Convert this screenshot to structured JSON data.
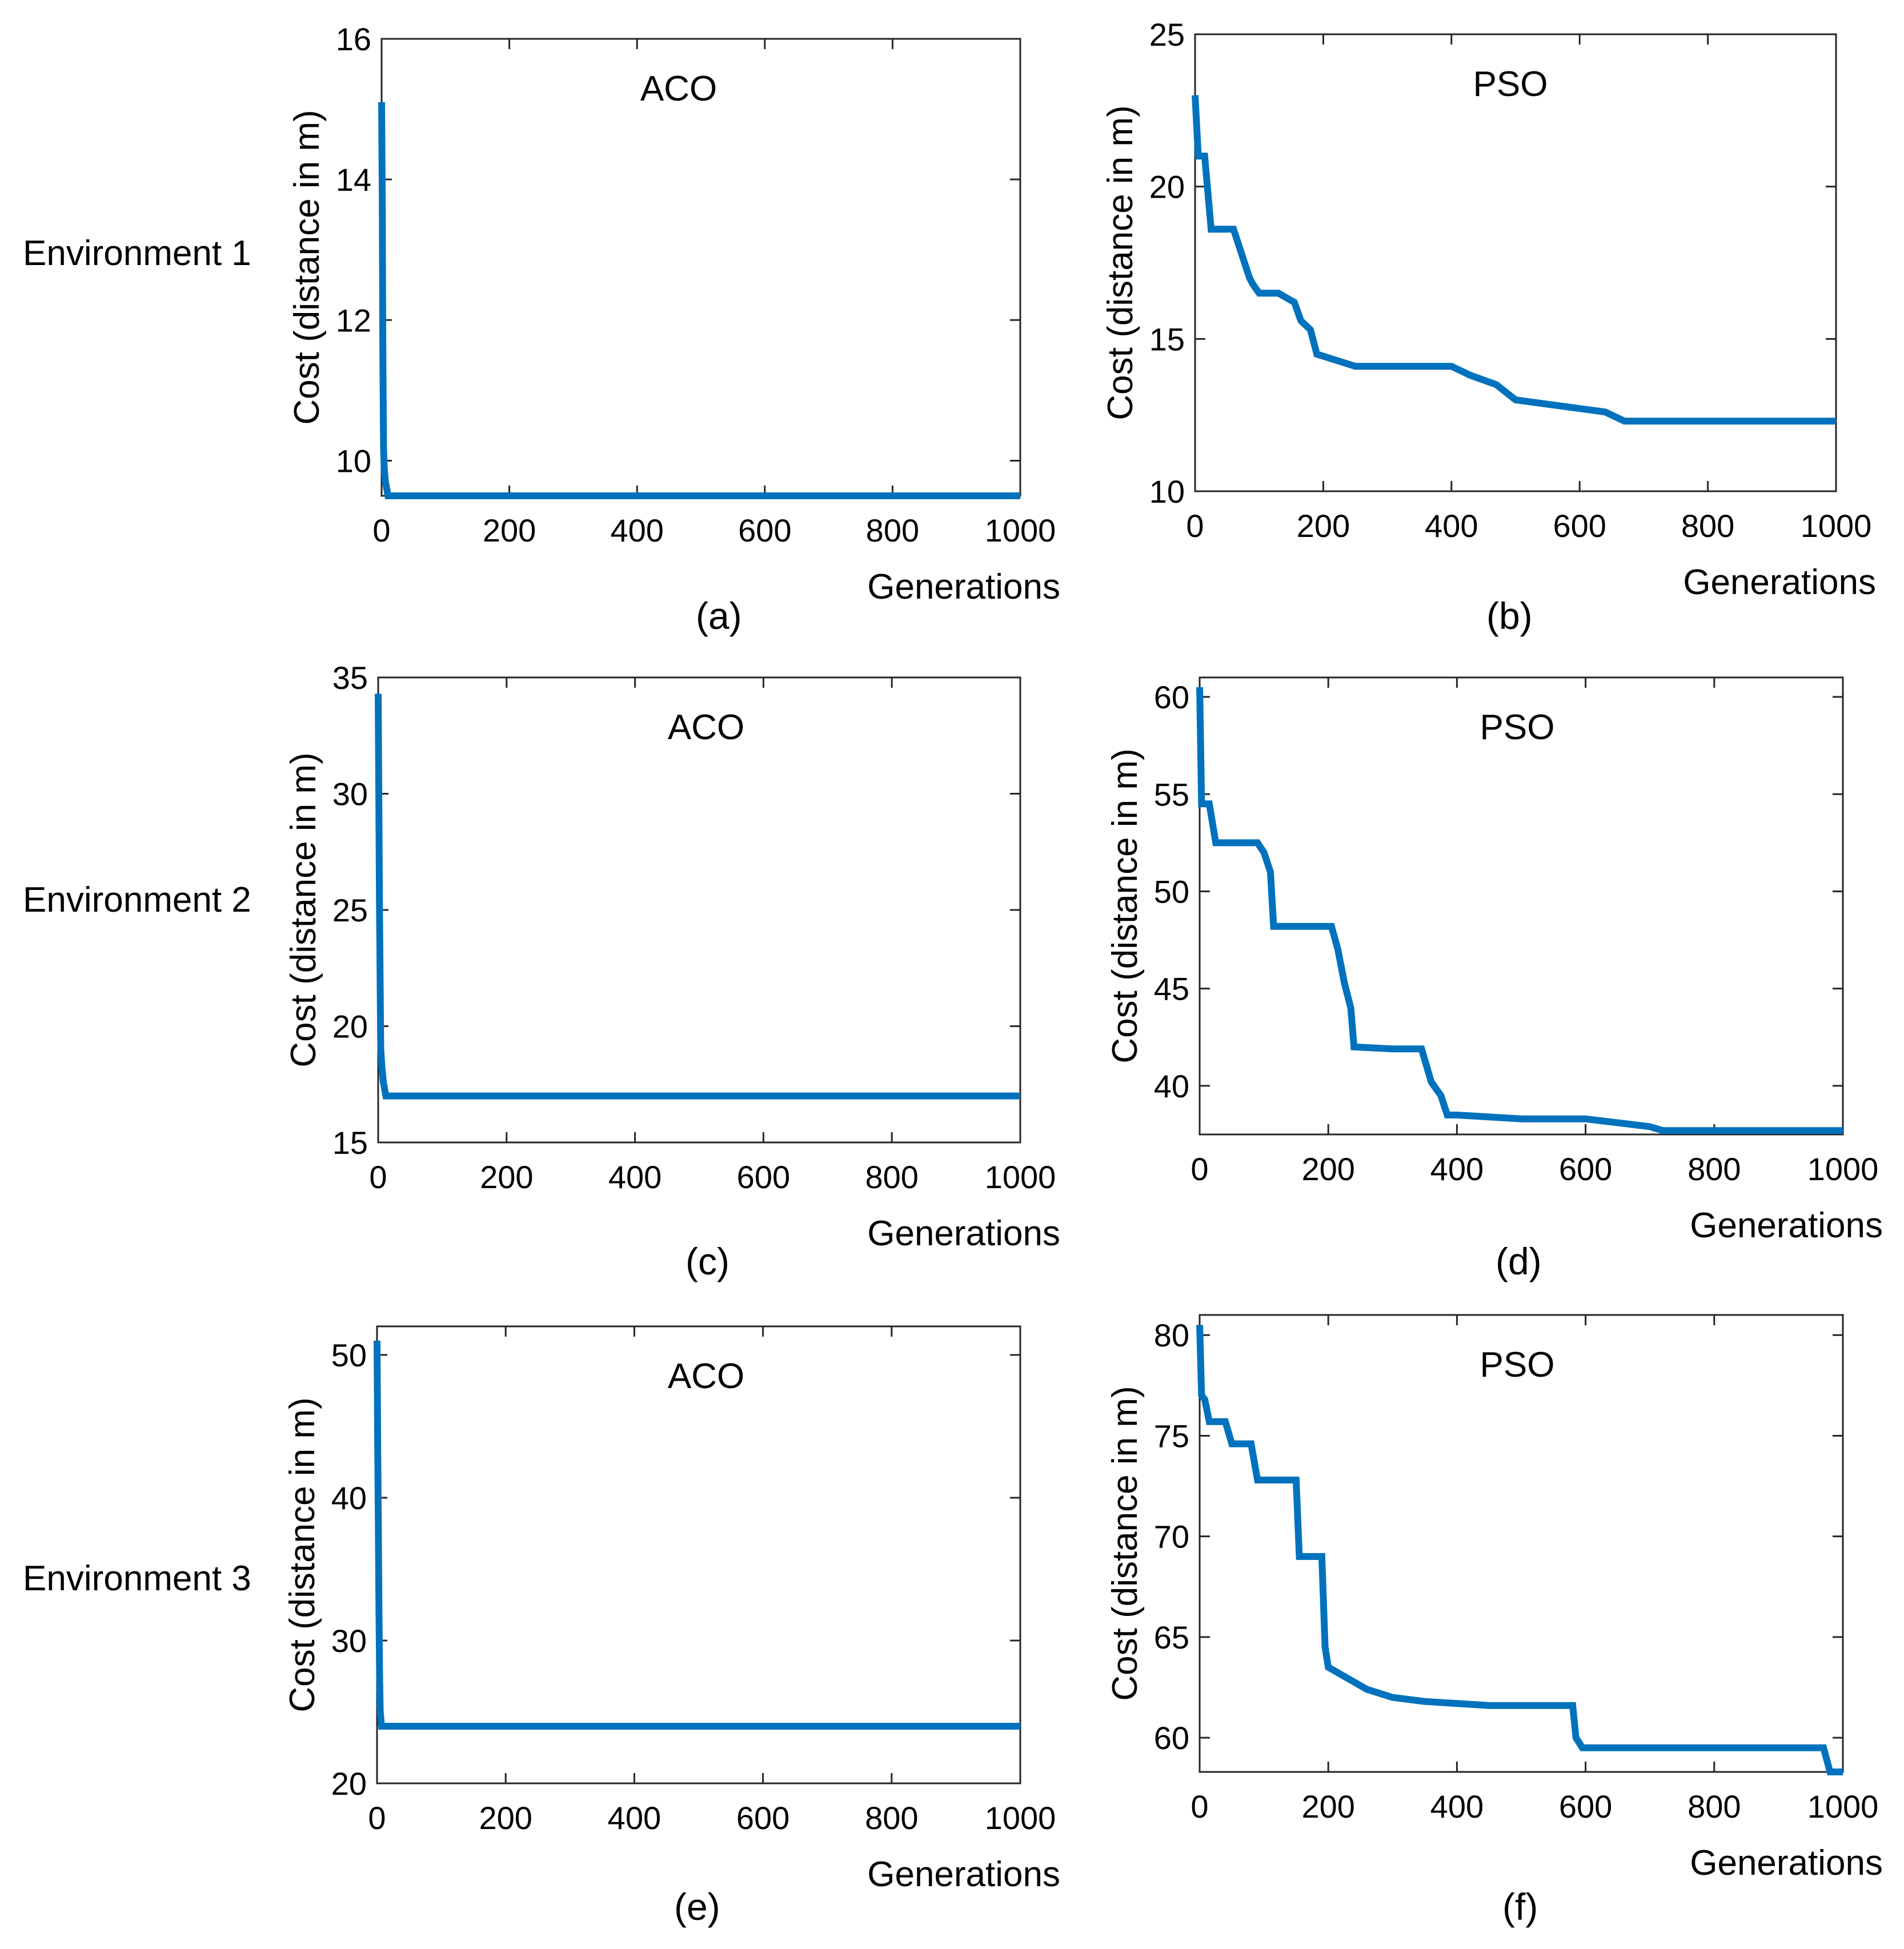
{
  "figure": {
    "row_labels": [
      "Environment 1",
      "Environment 2",
      "Environment 3"
    ],
    "panel_labels": [
      "(a)",
      "(b)",
      "(c)",
      "(d)",
      "(e)",
      "(f)"
    ]
  },
  "colors": {
    "line": "#0072BD",
    "axis": "#262626",
    "background": "#ffffff"
  },
  "chart_data": [
    {
      "id": "a",
      "type": "line",
      "title": "ACO",
      "xlabel": "Generations",
      "ylabel": "Cost (distance in m)",
      "xlim": [
        0,
        1000
      ],
      "ylim": [
        9.5,
        16
      ],
      "xticks": [
        0,
        200,
        400,
        600,
        800,
        1000
      ],
      "yticks": [
        10,
        12,
        14,
        16
      ],
      "series": [
        {
          "name": "ACO",
          "x": [
            0,
            1,
            2,
            3,
            4,
            6,
            10,
            1000
          ],
          "y": [
            15.1,
            13.8,
            11.5,
            10.2,
            9.9,
            9.7,
            9.5,
            9.5
          ]
        }
      ]
    },
    {
      "id": "b",
      "type": "line",
      "title": "PSO",
      "xlabel": "Generations",
      "ylabel": "Cost (distance in m)",
      "xlim": [
        0,
        1000
      ],
      "ylim": [
        10,
        25
      ],
      "xticks": [
        0,
        200,
        400,
        600,
        800,
        1000
      ],
      "yticks": [
        10,
        15,
        20,
        25
      ],
      "series": [
        {
          "name": "PSO",
          "x": [
            0,
            5,
            15,
            25,
            60,
            85,
            90,
            100,
            130,
            155,
            165,
            180,
            190,
            250,
            300,
            400,
            430,
            470,
            500,
            640,
            670,
            1000
          ],
          "y": [
            23.0,
            21.0,
            21.0,
            18.6,
            18.6,
            17.0,
            16.8,
            16.5,
            16.5,
            16.2,
            15.6,
            15.3,
            14.5,
            14.1,
            14.1,
            14.1,
            13.8,
            13.5,
            13.0,
            12.6,
            12.3,
            12.3
          ]
        }
      ]
    },
    {
      "id": "c",
      "type": "line",
      "title": "ACO",
      "xlabel": "Generations",
      "ylabel": "Cost (distance in m)",
      "xlim": [
        0,
        1000
      ],
      "ylim": [
        15,
        35
      ],
      "xticks": [
        0,
        200,
        400,
        600,
        800,
        1000
      ],
      "yticks": [
        15,
        20,
        25,
        30,
        35
      ],
      "series": [
        {
          "name": "ACO",
          "x": [
            0,
            1,
            2,
            3,
            4,
            6,
            8,
            12,
            1000
          ],
          "y": [
            34.3,
            30.0,
            25.5,
            22.0,
            19.0,
            18.2,
            17.6,
            17.0,
            17.0
          ]
        }
      ]
    },
    {
      "id": "d",
      "type": "line",
      "title": "PSO",
      "xlabel": "Generations",
      "ylabel": "Cost (distance in m)",
      "xlim": [
        0,
        1000
      ],
      "ylim": [
        37.5,
        61
      ],
      "xticks": [
        0,
        200,
        400,
        600,
        800,
        1000
      ],
      "yticks": [
        40,
        45,
        50,
        55,
        60
      ],
      "series": [
        {
          "name": "PSO",
          "x": [
            0,
            3,
            15,
            25,
            90,
            100,
            110,
            115,
            170,
            205,
            215,
            225,
            235,
            240,
            300,
            345,
            360,
            375,
            385,
            400,
            500,
            600,
            650,
            700,
            720,
            1000
          ],
          "y": [
            60.5,
            54.5,
            54.5,
            52.5,
            52.5,
            52.0,
            51.0,
            48.2,
            48.2,
            48.2,
            47.0,
            45.3,
            44.0,
            42.0,
            41.9,
            41.9,
            40.2,
            39.5,
            38.5,
            38.5,
            38.3,
            38.3,
            38.1,
            37.9,
            37.7,
            37.7
          ]
        }
      ]
    },
    {
      "id": "e",
      "type": "line",
      "title": "ACO",
      "xlabel": "Generations",
      "ylabel": "Cost (distance in m)",
      "xlim": [
        0,
        1000
      ],
      "ylim": [
        20,
        52
      ],
      "xticks": [
        0,
        200,
        400,
        600,
        800,
        1000
      ],
      "yticks": [
        20,
        30,
        40,
        50
      ],
      "series": [
        {
          "name": "ACO",
          "x": [
            0,
            1,
            2,
            3,
            4,
            5,
            7,
            1000
          ],
          "y": [
            51.0,
            44.0,
            38.0,
            32.0,
            27.5,
            25.0,
            24.0,
            24.0
          ]
        }
      ]
    },
    {
      "id": "f",
      "type": "line",
      "title": "PSO",
      "xlabel": "Generations",
      "ylabel": "Cost (distance in m)",
      "xlim": [
        0,
        1000
      ],
      "ylim": [
        58.3,
        81
      ],
      "xticks": [
        0,
        200,
        400,
        600,
        800,
        1000
      ],
      "yticks": [
        60,
        65,
        70,
        75,
        80
      ],
      "series": [
        {
          "name": "PSO",
          "x": [
            0,
            3,
            8,
            15,
            40,
            50,
            80,
            90,
            150,
            155,
            190,
            195,
            200,
            260,
            300,
            350,
            450,
            500,
            580,
            585,
            595,
            970,
            980,
            1000
          ],
          "y": [
            80.5,
            77.0,
            76.8,
            75.7,
            75.7,
            74.6,
            74.6,
            72.8,
            72.8,
            69.0,
            69.0,
            64.5,
            63.5,
            62.4,
            62.0,
            61.8,
            61.6,
            61.6,
            61.6,
            60.0,
            59.5,
            59.5,
            58.3,
            58.3
          ]
        }
      ]
    }
  ]
}
